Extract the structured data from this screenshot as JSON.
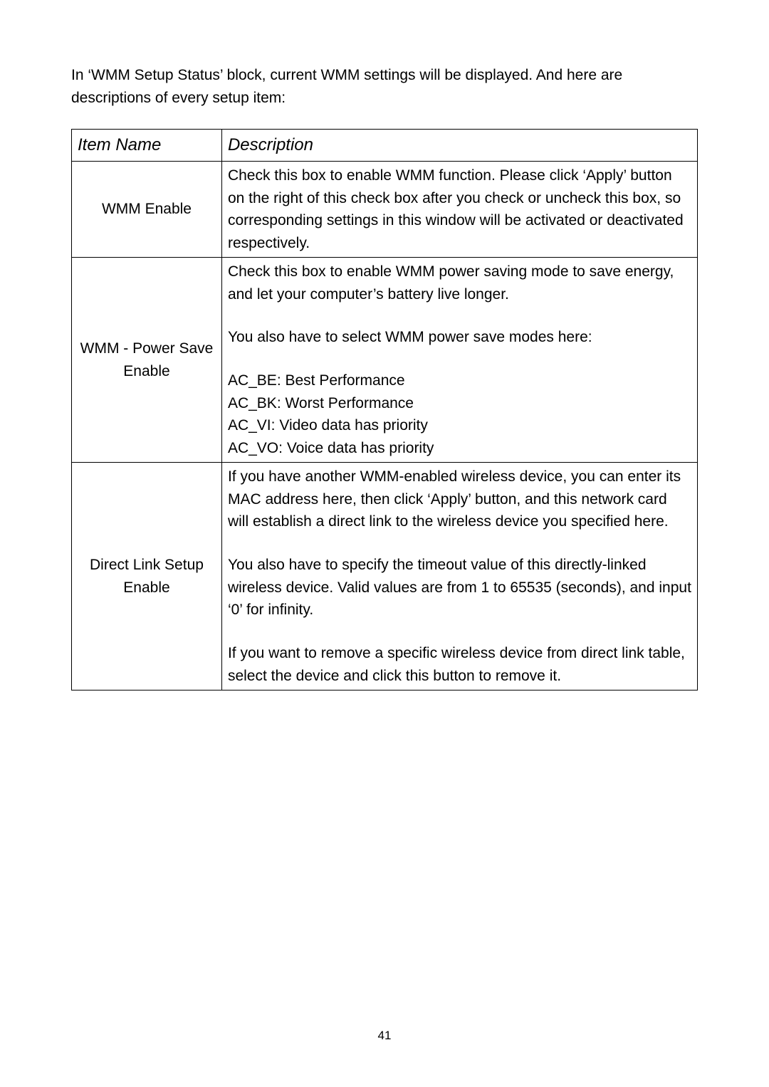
{
  "intro": "In ‘WMM Setup Status’ block, current WMM settings will be displayed. And here are descriptions of every setup item:",
  "headers": {
    "col1": "Item Name",
    "col2": "Description"
  },
  "rows": [
    {
      "name": "WMM Enable",
      "desc_lines": [
        "Check this box to enable WMM function. Please click ‘Apply’ button on the right of this check box after you check or uncheck this box, so corresponding settings in this window will be activated or deactivated respectively."
      ]
    },
    {
      "name": "WMM - Power Save Enable",
      "desc_lines": [
        "Check this box to enable WMM power saving mode to save energy, and let your computer’s battery live longer.",
        "",
        "You also have to select WMM power save modes here:",
        "",
        "AC_BE: Best Performance",
        "AC_BK: Worst Performance",
        "AC_VI: Video data has priority",
        "AC_VO: Voice data has priority"
      ]
    },
    {
      "name": "Direct Link Setup Enable",
      "desc_lines": [
        "If you have another WMM-enabled wireless device, you can enter its MAC address here, then click ‘Apply’ button, and this network card will establish a direct link to the wireless device you specified here.",
        "",
        "You also have to specify the timeout value of this directly-linked wireless device. Valid values are from 1 to 65535 (seconds), and input ‘0’ for infinity.",
        "",
        "If you want to remove a specific wireless device from direct link table, select the device and click this button to remove it."
      ]
    }
  ],
  "page_number": "41"
}
